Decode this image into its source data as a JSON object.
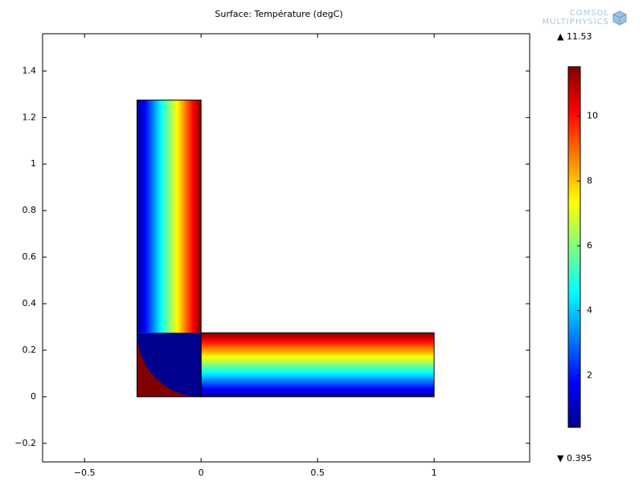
{
  "chart_data": {
    "type": "surface",
    "title": "Surface: Température (degC)",
    "logo": [
      "COMSOL",
      "MULTIPHYSICS"
    ],
    "xlim": [
      -0.68,
      1.41
    ],
    "ylim": [
      -0.28,
      1.56
    ],
    "xticks": [
      {
        "value": -0.5,
        "label": "−0.5"
      },
      0,
      0.5,
      1
    ],
    "yticks": [
      {
        "value": -0.2,
        "label": "−0.2"
      },
      0,
      0.2,
      0.4,
      0.6,
      0.8,
      1,
      1.2,
      1.4
    ],
    "domains": [
      {
        "x": [
          -0.275,
          0
        ],
        "y": [
          0,
          1.275
        ]
      },
      {
        "x": [
          0,
          1
        ],
        "y": [
          0,
          0.275
        ]
      }
    ],
    "colormap": "jet",
    "colorbar": {
      "clim": [
        0.395,
        11.53
      ],
      "clim_labels": [
        "▼ 0.395",
        "▲ 11.53"
      ],
      "ticks": [
        2,
        4,
        6,
        8,
        10
      ]
    }
  }
}
